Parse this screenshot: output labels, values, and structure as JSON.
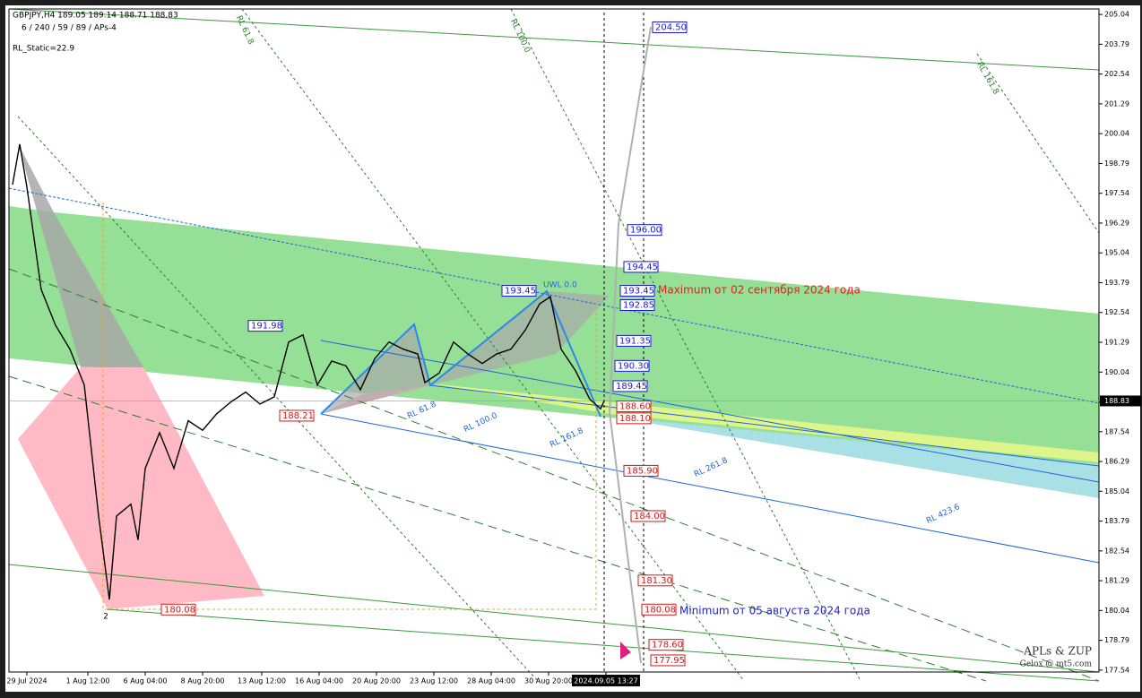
{
  "chart_data": {
    "type": "line",
    "header": "GBPJPY,H4  189.05 189.14 188.71 188.83",
    "subheader": "6 / 240 / 59 / 89 / APs-4",
    "indicator": "RL_Static=22.9",
    "watermark": "APLs & ZUP",
    "watermark_sub": "Gelox @ mt5.com",
    "pivot_label": "2",
    "annotations": [
      "Maximum от 02 сентября 2024 года",
      "Minimum от 05 августа 2024 года"
    ],
    "fib_labels": [
      "UWL 0.0",
      "RL 61.8",
      "RL 100.0",
      "RL 161.8",
      "RL 261.8",
      "RL 423.6",
      "RL 161.8",
      "RL 100.0",
      "RL 61.8"
    ],
    "xlim": [
      -5,
      299
    ],
    "ylim": [
      177.46,
      205.27
    ],
    "xticks": [
      {
        "value": 0,
        "label": "29 Jul 2024"
      },
      {
        "value": 17,
        "label": "1 Aug 12:00"
      },
      {
        "value": 33,
        "label": "6 Aug 04:00"
      },
      {
        "value": 49,
        "label": "8 Aug 20:00"
      },
      {
        "value": 65.5,
        "label": "13 Aug 12:00"
      },
      {
        "value": 81.5,
        "label": "16 Aug 04:00"
      },
      {
        "value": 97.5,
        "label": "20 Aug 20:00"
      },
      {
        "value": 113.5,
        "label": "23 Aug 12:00"
      },
      {
        "value": 129.5,
        "label": "28 Aug 04:00"
      },
      {
        "value": 145.5,
        "label": "30 Aug 20:00"
      },
      {
        "value": 161.5,
        "label": "2024.09.05 13:27"
      }
    ],
    "yticks": [
      205.04,
      203.79,
      202.54,
      201.29,
      200.04,
      198.79,
      197.54,
      196.29,
      195.04,
      193.79,
      192.54,
      191.29,
      190.04,
      188.79,
      187.54,
      186.29,
      185.04,
      183.79,
      182.54,
      181.29,
      {
        "value": 180.04,
        "label": "180.04"
      },
      178.79,
      177.54
    ],
    "current_price": 188.83,
    "series": [
      {
        "name": "GBPJPY",
        "color": "#000000",
        "x": [
          -4,
          -2,
          0,
          4,
          8,
          12,
          16,
          20,
          23,
          25,
          29,
          31,
          33,
          37,
          41,
          45,
          49,
          53,
          57,
          61,
          65,
          69,
          73,
          77,
          81,
          85,
          89,
          93,
          97,
          101,
          105,
          109,
          111,
          115,
          119,
          123,
          127,
          131,
          135,
          139,
          143,
          146,
          149,
          153,
          157,
          160,
          161
        ],
        "values": [
          197.9,
          199.6,
          197.8,
          193.5,
          192.0,
          191.0,
          189.5,
          184.0,
          180.5,
          184.0,
          184.5,
          183.0,
          186.0,
          187.5,
          186.0,
          188.0,
          187.6,
          188.3,
          188.8,
          189.2,
          188.7,
          189.0,
          191.3,
          191.6,
          189.5,
          190.5,
          190.3,
          189.3,
          190.6,
          191.3,
          191.0,
          190.8,
          189.6,
          190.0,
          191.3,
          190.8,
          190.4,
          190.8,
          191.0,
          191.8,
          192.9,
          193.2,
          191.0,
          190.1,
          188.9,
          188.5,
          188.83
        ]
      }
    ],
    "upper_levels": [
      {
        "value": 204.5,
        "label": "204.50"
      },
      {
        "value": 196,
        "label": "196.00"
      },
      {
        "value": 194.45,
        "label": "194.45"
      },
      {
        "value": 193.45,
        "label": "193.45"
      },
      {
        "value": 192.85,
        "label": "192.85"
      },
      {
        "value": 191.35,
        "label": "191.35"
      },
      {
        "value": 190.3,
        "label": "190.30"
      },
      {
        "value": 189.45,
        "label": "189.45"
      }
    ],
    "lower_levels": [
      {
        "value": 188.6,
        "label": "188.60"
      },
      {
        "value": 188.1,
        "label": "188.10"
      },
      {
        "value": 185.9,
        "label": "185.90"
      },
      {
        "value": 184,
        "label": "184.00"
      },
      {
        "value": 181.3,
        "label": "181.30"
      },
      {
        "value": 180.08,
        "label": "180.08"
      },
      {
        "value": 178.6,
        "label": "178.60"
      },
      {
        "value": 177.95,
        "label": "177.95"
      }
    ],
    "pivot_levels": [
      {
        "value": 193.45,
        "label": "193.45",
        "color": "blue"
      },
      {
        "value": 191.98,
        "label": "191.98",
        "color": "blue"
      },
      {
        "value": 188.21,
        "label": "188.21",
        "color": "red"
      },
      {
        "value": 180.08,
        "label": "180.08",
        "color": "red"
      }
    ]
  }
}
